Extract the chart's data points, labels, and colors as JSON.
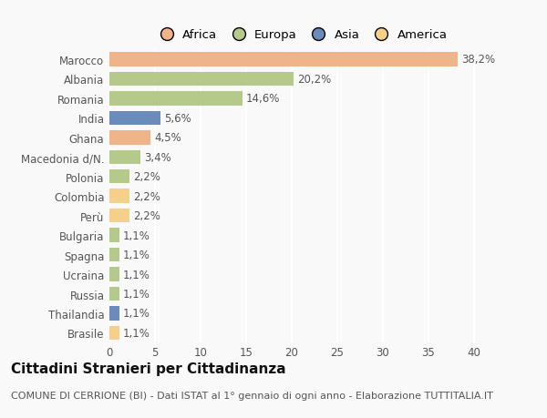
{
  "categories": [
    "Marocco",
    "Albania",
    "Romania",
    "India",
    "Ghana",
    "Macedonia d/N.",
    "Polonia",
    "Colombia",
    "Perù",
    "Bulgaria",
    "Spagna",
    "Ucraina",
    "Russia",
    "Thailandia",
    "Brasile"
  ],
  "values": [
    38.2,
    20.2,
    14.6,
    5.6,
    4.5,
    3.4,
    2.2,
    2.2,
    2.2,
    1.1,
    1.1,
    1.1,
    1.1,
    1.1,
    1.1
  ],
  "labels": [
    "38,2%",
    "20,2%",
    "14,6%",
    "5,6%",
    "4,5%",
    "3,4%",
    "2,2%",
    "2,2%",
    "2,2%",
    "1,1%",
    "1,1%",
    "1,1%",
    "1,1%",
    "1,1%",
    "1,1%"
  ],
  "colors": [
    "#f0b48a",
    "#b5c98a",
    "#b5c98a",
    "#6b8cba",
    "#f0b48a",
    "#b5c98a",
    "#b5c98a",
    "#f5d08a",
    "#f5d08a",
    "#b5c98a",
    "#b5c98a",
    "#b5c98a",
    "#b5c98a",
    "#6b8cba",
    "#f5d08a"
  ],
  "legend_labels": [
    "Africa",
    "Europa",
    "Asia",
    "America"
  ],
  "legend_colors": [
    "#f0b48a",
    "#b5c98a",
    "#6b8cba",
    "#f5d08a"
  ],
  "title": "Cittadini Stranieri per Cittadinanza",
  "subtitle": "COMUNE DI CERRIONE (BI) - Dati ISTAT al 1° gennaio di ogni anno - Elaborazione TUTTITALIA.IT",
  "xlim": [
    0,
    42
  ],
  "xticks": [
    0,
    5,
    10,
    15,
    20,
    25,
    30,
    35,
    40
  ],
  "background_color": "#f9f9f9",
  "grid_color": "#ffffff",
  "bar_height": 0.72,
  "title_fontsize": 11,
  "subtitle_fontsize": 8,
  "tick_fontsize": 8.5,
  "label_fontsize": 8.5,
  "legend_fontsize": 9.5
}
